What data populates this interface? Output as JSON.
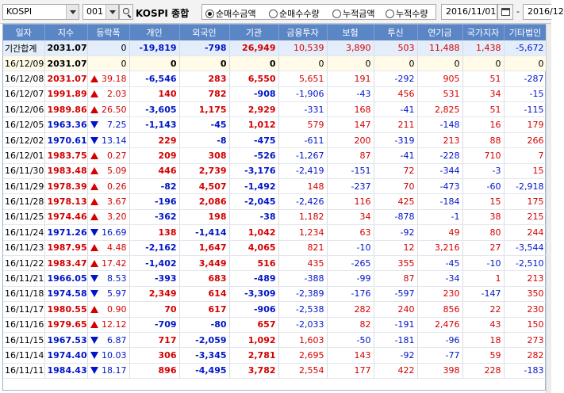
{
  "toolbar": {
    "market": "KOSPI",
    "code": "001",
    "stock_name": "KOSPI 종합",
    "radios": [
      {
        "label": "순매수금액",
        "checked": true
      },
      {
        "label": "순매수수량",
        "checked": false
      },
      {
        "label": "누적금액",
        "checked": false
      },
      {
        "label": "누적수량",
        "checked": false
      }
    ],
    "start_date": "2016/11/01",
    "end_date": "2016/12"
  },
  "table": {
    "headers": [
      "일자",
      "지수",
      "등락폭",
      "개인",
      "외국인",
      "기관",
      "금융투자",
      "보험",
      "투신",
      "연기금",
      "국가지자",
      "기타법인"
    ],
    "rows": [
      {
        "date": "기간합계",
        "index": "2031.07",
        "dir": "",
        "change": "0",
        "v": [
          "-19,819",
          "-798",
          "26,949",
          "10,539",
          "3,890",
          "503",
          "11,488",
          "1,438",
          "-5,672"
        ],
        "summary": true
      },
      {
        "date": "16/12/09",
        "index": "2031.07",
        "dir": "",
        "change": "0",
        "v": [
          "0",
          "0",
          "0",
          "0",
          "0",
          "0",
          "0",
          "0",
          "0"
        ],
        "sel": true
      },
      {
        "date": "16/12/08",
        "index": "2031.07",
        "dir": "up",
        "change": "39.18",
        "v": [
          "-6,546",
          "283",
          "6,550",
          "5,651",
          "191",
          "-292",
          "905",
          "51",
          "-287"
        ]
      },
      {
        "date": "16/12/07",
        "index": "1991.89",
        "dir": "up",
        "change": "2.03",
        "v": [
          "140",
          "782",
          "-908",
          "-1,906",
          "-43",
          "456",
          "531",
          "34",
          "-15"
        ]
      },
      {
        "date": "16/12/06",
        "index": "1989.86",
        "dir": "up",
        "change": "26.50",
        "v": [
          "-3,605",
          "1,175",
          "2,929",
          "-331",
          "168",
          "-41",
          "2,825",
          "51",
          "-115"
        ]
      },
      {
        "date": "16/12/05",
        "index": "1963.36",
        "dir": "down",
        "change": "7.25",
        "v": [
          "-1,143",
          "-45",
          "1,012",
          "579",
          "147",
          "211",
          "-148",
          "16",
          "179"
        ]
      },
      {
        "date": "16/12/02",
        "index": "1970.61",
        "dir": "down",
        "change": "13.14",
        "v": [
          "229",
          "-8",
          "-475",
          "-611",
          "200",
          "-319",
          "213",
          "88",
          "266"
        ]
      },
      {
        "date": "16/12/01",
        "index": "1983.75",
        "dir": "up",
        "change": "0.27",
        "v": [
          "209",
          "308",
          "-526",
          "-1,267",
          "87",
          "-41",
          "-228",
          "710",
          "7"
        ]
      },
      {
        "date": "16/11/30",
        "index": "1983.48",
        "dir": "up",
        "change": "5.09",
        "v": [
          "446",
          "2,739",
          "-3,176",
          "-2,419",
          "-151",
          "72",
          "-344",
          "-3",
          "15"
        ]
      },
      {
        "date": "16/11/29",
        "index": "1978.39",
        "dir": "up",
        "change": "0.26",
        "v": [
          "-82",
          "4,507",
          "-1,492",
          "148",
          "-237",
          "70",
          "-473",
          "-60",
          "-2,918"
        ]
      },
      {
        "date": "16/11/28",
        "index": "1978.13",
        "dir": "up",
        "change": "3.67",
        "v": [
          "-196",
          "2,086",
          "-2,045",
          "-2,426",
          "116",
          "425",
          "-184",
          "15",
          "175"
        ]
      },
      {
        "date": "16/11/25",
        "index": "1974.46",
        "dir": "up",
        "change": "3.20",
        "v": [
          "-362",
          "198",
          "-38",
          "1,182",
          "34",
          "-878",
          "-1",
          "38",
          "215"
        ]
      },
      {
        "date": "16/11/24",
        "index": "1971.26",
        "dir": "down",
        "change": "16.69",
        "v": [
          "138",
          "-1,414",
          "1,042",
          "1,234",
          "63",
          "-92",
          "49",
          "80",
          "244"
        ]
      },
      {
        "date": "16/11/23",
        "index": "1987.95",
        "dir": "up",
        "change": "4.48",
        "v": [
          "-2,162",
          "1,647",
          "4,065",
          "821",
          "-10",
          "12",
          "3,216",
          "27",
          "-3,544"
        ]
      },
      {
        "date": "16/11/22",
        "index": "1983.47",
        "dir": "up",
        "change": "17.42",
        "v": [
          "-1,402",
          "3,449",
          "516",
          "435",
          "-265",
          "355",
          "-45",
          "-10",
          "-2,510"
        ]
      },
      {
        "date": "16/11/21",
        "index": "1966.05",
        "dir": "down",
        "change": "8.53",
        "v": [
          "-393",
          "683",
          "-489",
          "-388",
          "-99",
          "87",
          "-34",
          "1",
          "213"
        ]
      },
      {
        "date": "16/11/18",
        "index": "1974.58",
        "dir": "down",
        "change": "5.97",
        "v": [
          "2,349",
          "614",
          "-3,309",
          "-2,389",
          "-176",
          "-597",
          "230",
          "-147",
          "350"
        ]
      },
      {
        "date": "16/11/17",
        "index": "1980.55",
        "dir": "up",
        "change": "0.90",
        "v": [
          "70",
          "617",
          "-906",
          "-2,538",
          "282",
          "240",
          "856",
          "22",
          "230"
        ]
      },
      {
        "date": "16/11/16",
        "index": "1979.65",
        "dir": "up",
        "change": "12.12",
        "v": [
          "-709",
          "-80",
          "657",
          "-2,033",
          "82",
          "-191",
          "2,476",
          "43",
          "150"
        ]
      },
      {
        "date": "16/11/15",
        "index": "1967.53",
        "dir": "down",
        "change": "6.87",
        "v": [
          "717",
          "-2,059",
          "1,092",
          "1,603",
          "-50",
          "-181",
          "-96",
          "18",
          "273"
        ]
      },
      {
        "date": "16/11/14",
        "index": "1974.40",
        "dir": "down",
        "change": "10.03",
        "v": [
          "306",
          "-3,345",
          "2,781",
          "2,695",
          "143",
          "-92",
          "-77",
          "59",
          "282"
        ]
      },
      {
        "date": "16/11/11",
        "index": "1984.43",
        "dir": "down",
        "change": "18.17",
        "v": [
          "896",
          "-4,495",
          "3,782",
          "2,554",
          "177",
          "422",
          "398",
          "228",
          "-183"
        ]
      }
    ]
  }
}
